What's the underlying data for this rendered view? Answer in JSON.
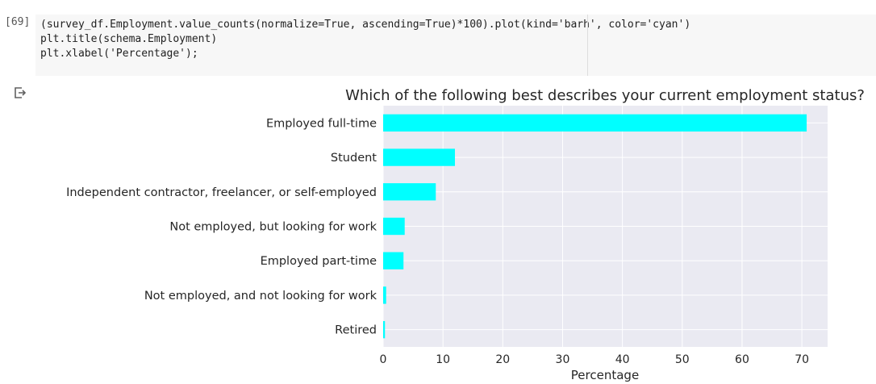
{
  "cell": {
    "execution_count": "[69]",
    "code_lines": [
      "(survey_df.Employment.value_counts(normalize=True, ascending=True)*100).plot(kind='barh', color='cyan')",
      "plt.title(schema.Employment)",
      "plt.xlabel('Percentage');"
    ]
  },
  "output": {
    "icon": "output-redirect-icon"
  },
  "colors": {
    "bar": "#00ffff",
    "plot_background": "#eaeaf2",
    "grid": "#ffffff",
    "text": "#262626"
  },
  "chart_data": {
    "type": "bar",
    "orientation": "horizontal",
    "title": "Which of the following best describes your current employment status?",
    "xlabel": "Percentage",
    "ylabel": "",
    "categories": [
      "Employed full-time",
      "Student",
      "Independent contractor, freelancer, or self-employed",
      "Not employed, but looking for work",
      "Employed part-time",
      "Not employed, and not looking for work",
      "Retired"
    ],
    "values": [
      70.8,
      12.0,
      8.8,
      3.6,
      3.4,
      0.5,
      0.3
    ],
    "xlim": [
      0,
      74.3
    ],
    "xticks": [
      0,
      10,
      20,
      30,
      40,
      50,
      60,
      70
    ],
    "grid": true,
    "style": "seaborn-darkgrid"
  }
}
